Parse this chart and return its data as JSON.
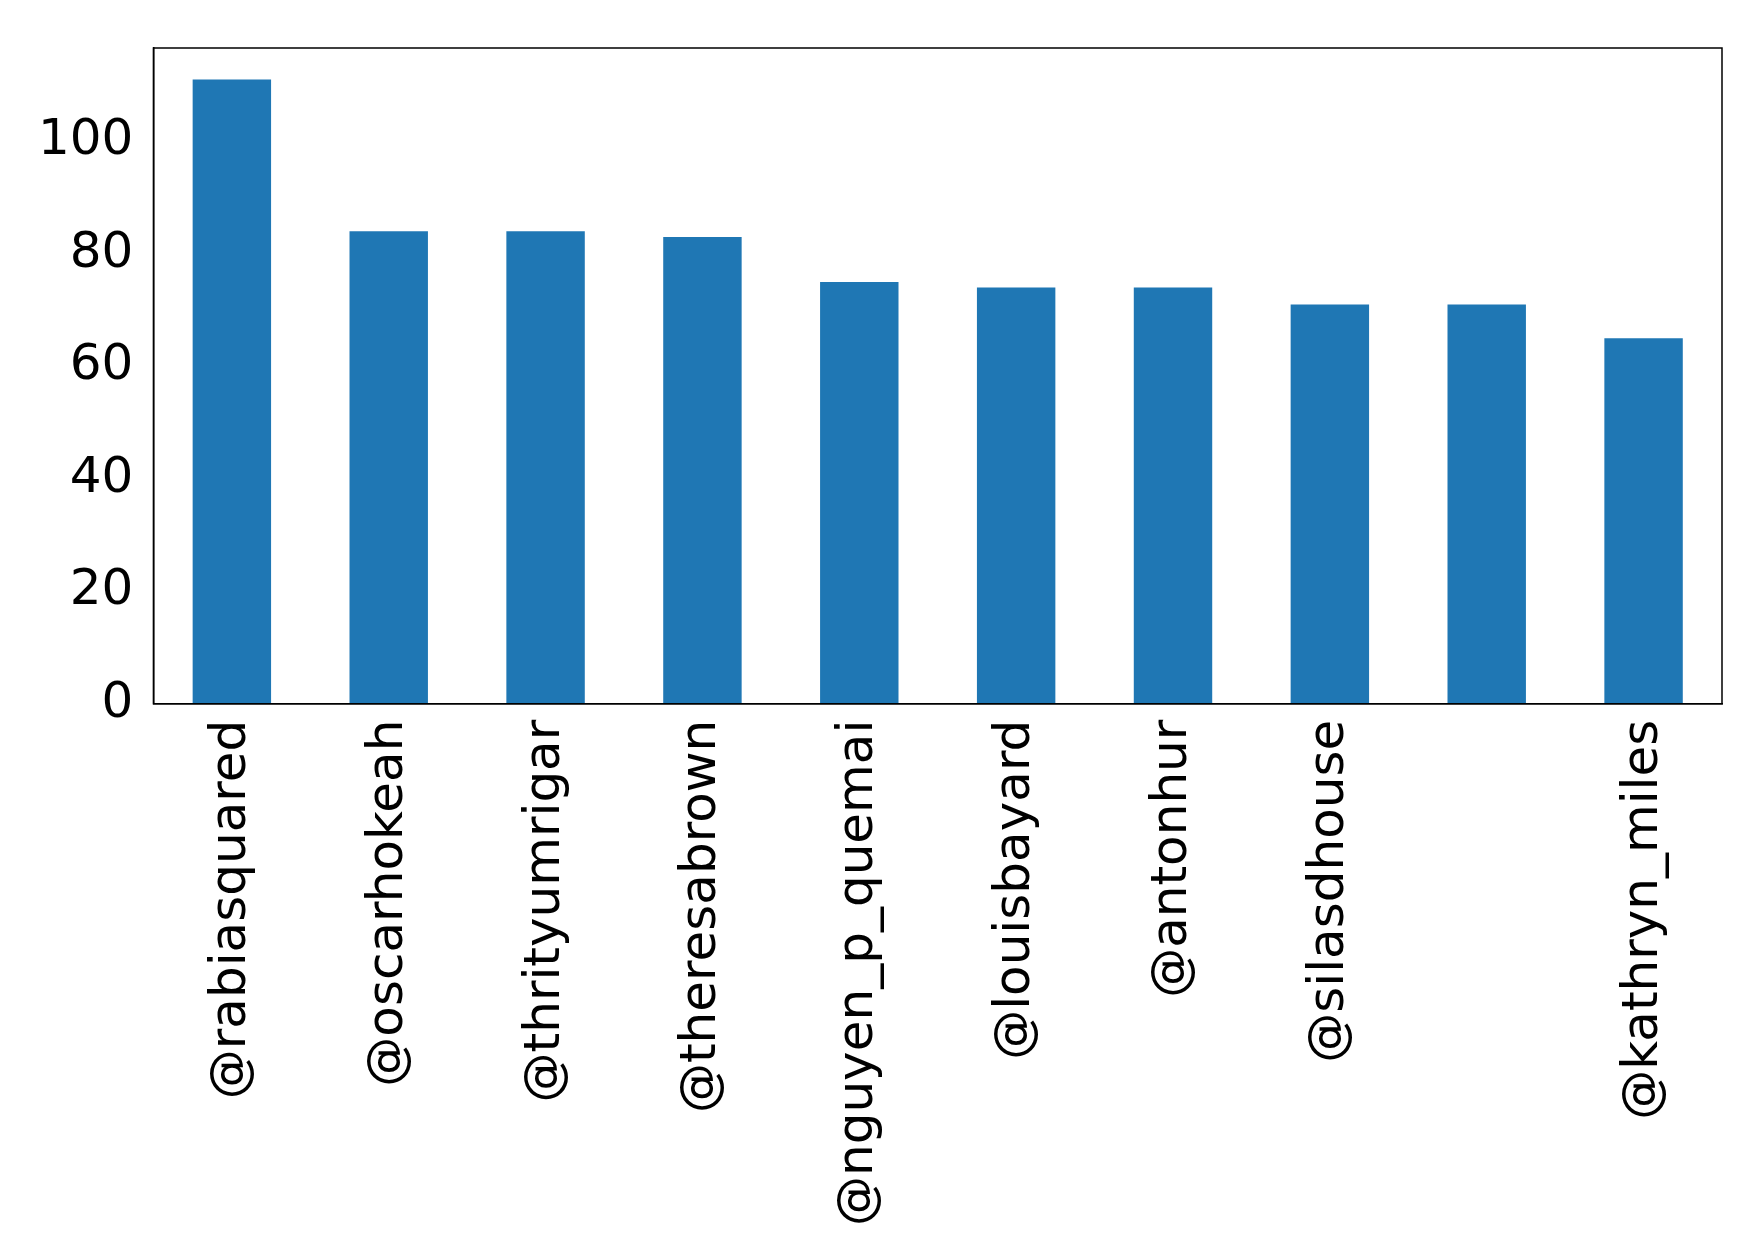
{
  "chart_data": {
    "type": "bar",
    "categories": [
      "@rabiasquared",
      "@oscarhokeah",
      "@thrityumrigar",
      "@theresabrown",
      "@nguyen_p_quemai",
      "@louisbayard",
      "@antonhur",
      "@silasdhouse",
      null,
      "@kathryn_miles"
    ],
    "values": [
      111,
      84,
      84,
      83,
      75,
      74,
      74,
      71,
      71,
      65
    ],
    "color": "#1f77b4",
    "ylim": [
      0,
      116.6
    ],
    "yticks": [
      0,
      20,
      40,
      60,
      80,
      100
    ],
    "grid": false,
    "legend": false
  }
}
